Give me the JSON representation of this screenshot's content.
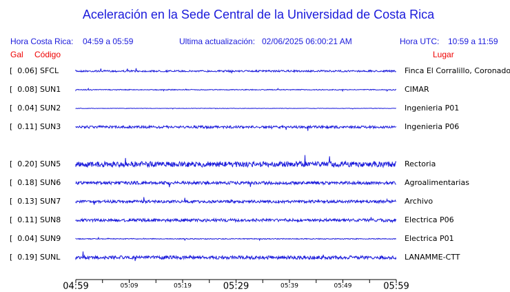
{
  "title": "Aceleración en la Sede Central de la Universidad de Costa Rica",
  "info": {
    "local_label": "Hora Costa Rica:",
    "local_range": "04:59 a 05:59",
    "update_label": "Ultima actualización:",
    "update_value": "02/06/2025 06:00:21 AM",
    "utc_label": "Hora UTC:",
    "utc_range": "10:59 a 11:59"
  },
  "headers": {
    "gal": "Gal",
    "code": "Código",
    "place": "Lugar"
  },
  "stations": [
    {
      "gal": "[  0.06]",
      "code": "SFCL",
      "place": "Finca El Corralillo, Coronado"
    },
    {
      "gal": "[  0.08]",
      "code": "SUN1",
      "place": "CIMAR"
    },
    {
      "gal": "[  0.04]",
      "code": "SUN2",
      "place": "Ingenieria P01"
    },
    {
      "gal": "[  0.11]",
      "code": "SUN3",
      "place": "Ingenieria P06"
    },
    {
      "gal": "[  0.20]",
      "code": "SUN5",
      "place": "Rectoria"
    },
    {
      "gal": "[  0.18]",
      "code": "SUN6",
      "place": "Agroalimentarias"
    },
    {
      "gal": "[  0.13]",
      "code": "SUN7",
      "place": "Archivo"
    },
    {
      "gal": "[  0.11]",
      "code": "SUN8",
      "place": "Electrica P06"
    },
    {
      "gal": "[  0.04]",
      "code": "SUN9",
      "place": "Electrica P01"
    },
    {
      "gal": "[  0.19]",
      "code": "SUNL",
      "place": "LANAMME-CTT"
    }
  ],
  "time_labels": [
    "04:59",
    "05:09",
    "05:19",
    "05:29",
    "05:39",
    "05:49",
    "05:59"
  ]
}
